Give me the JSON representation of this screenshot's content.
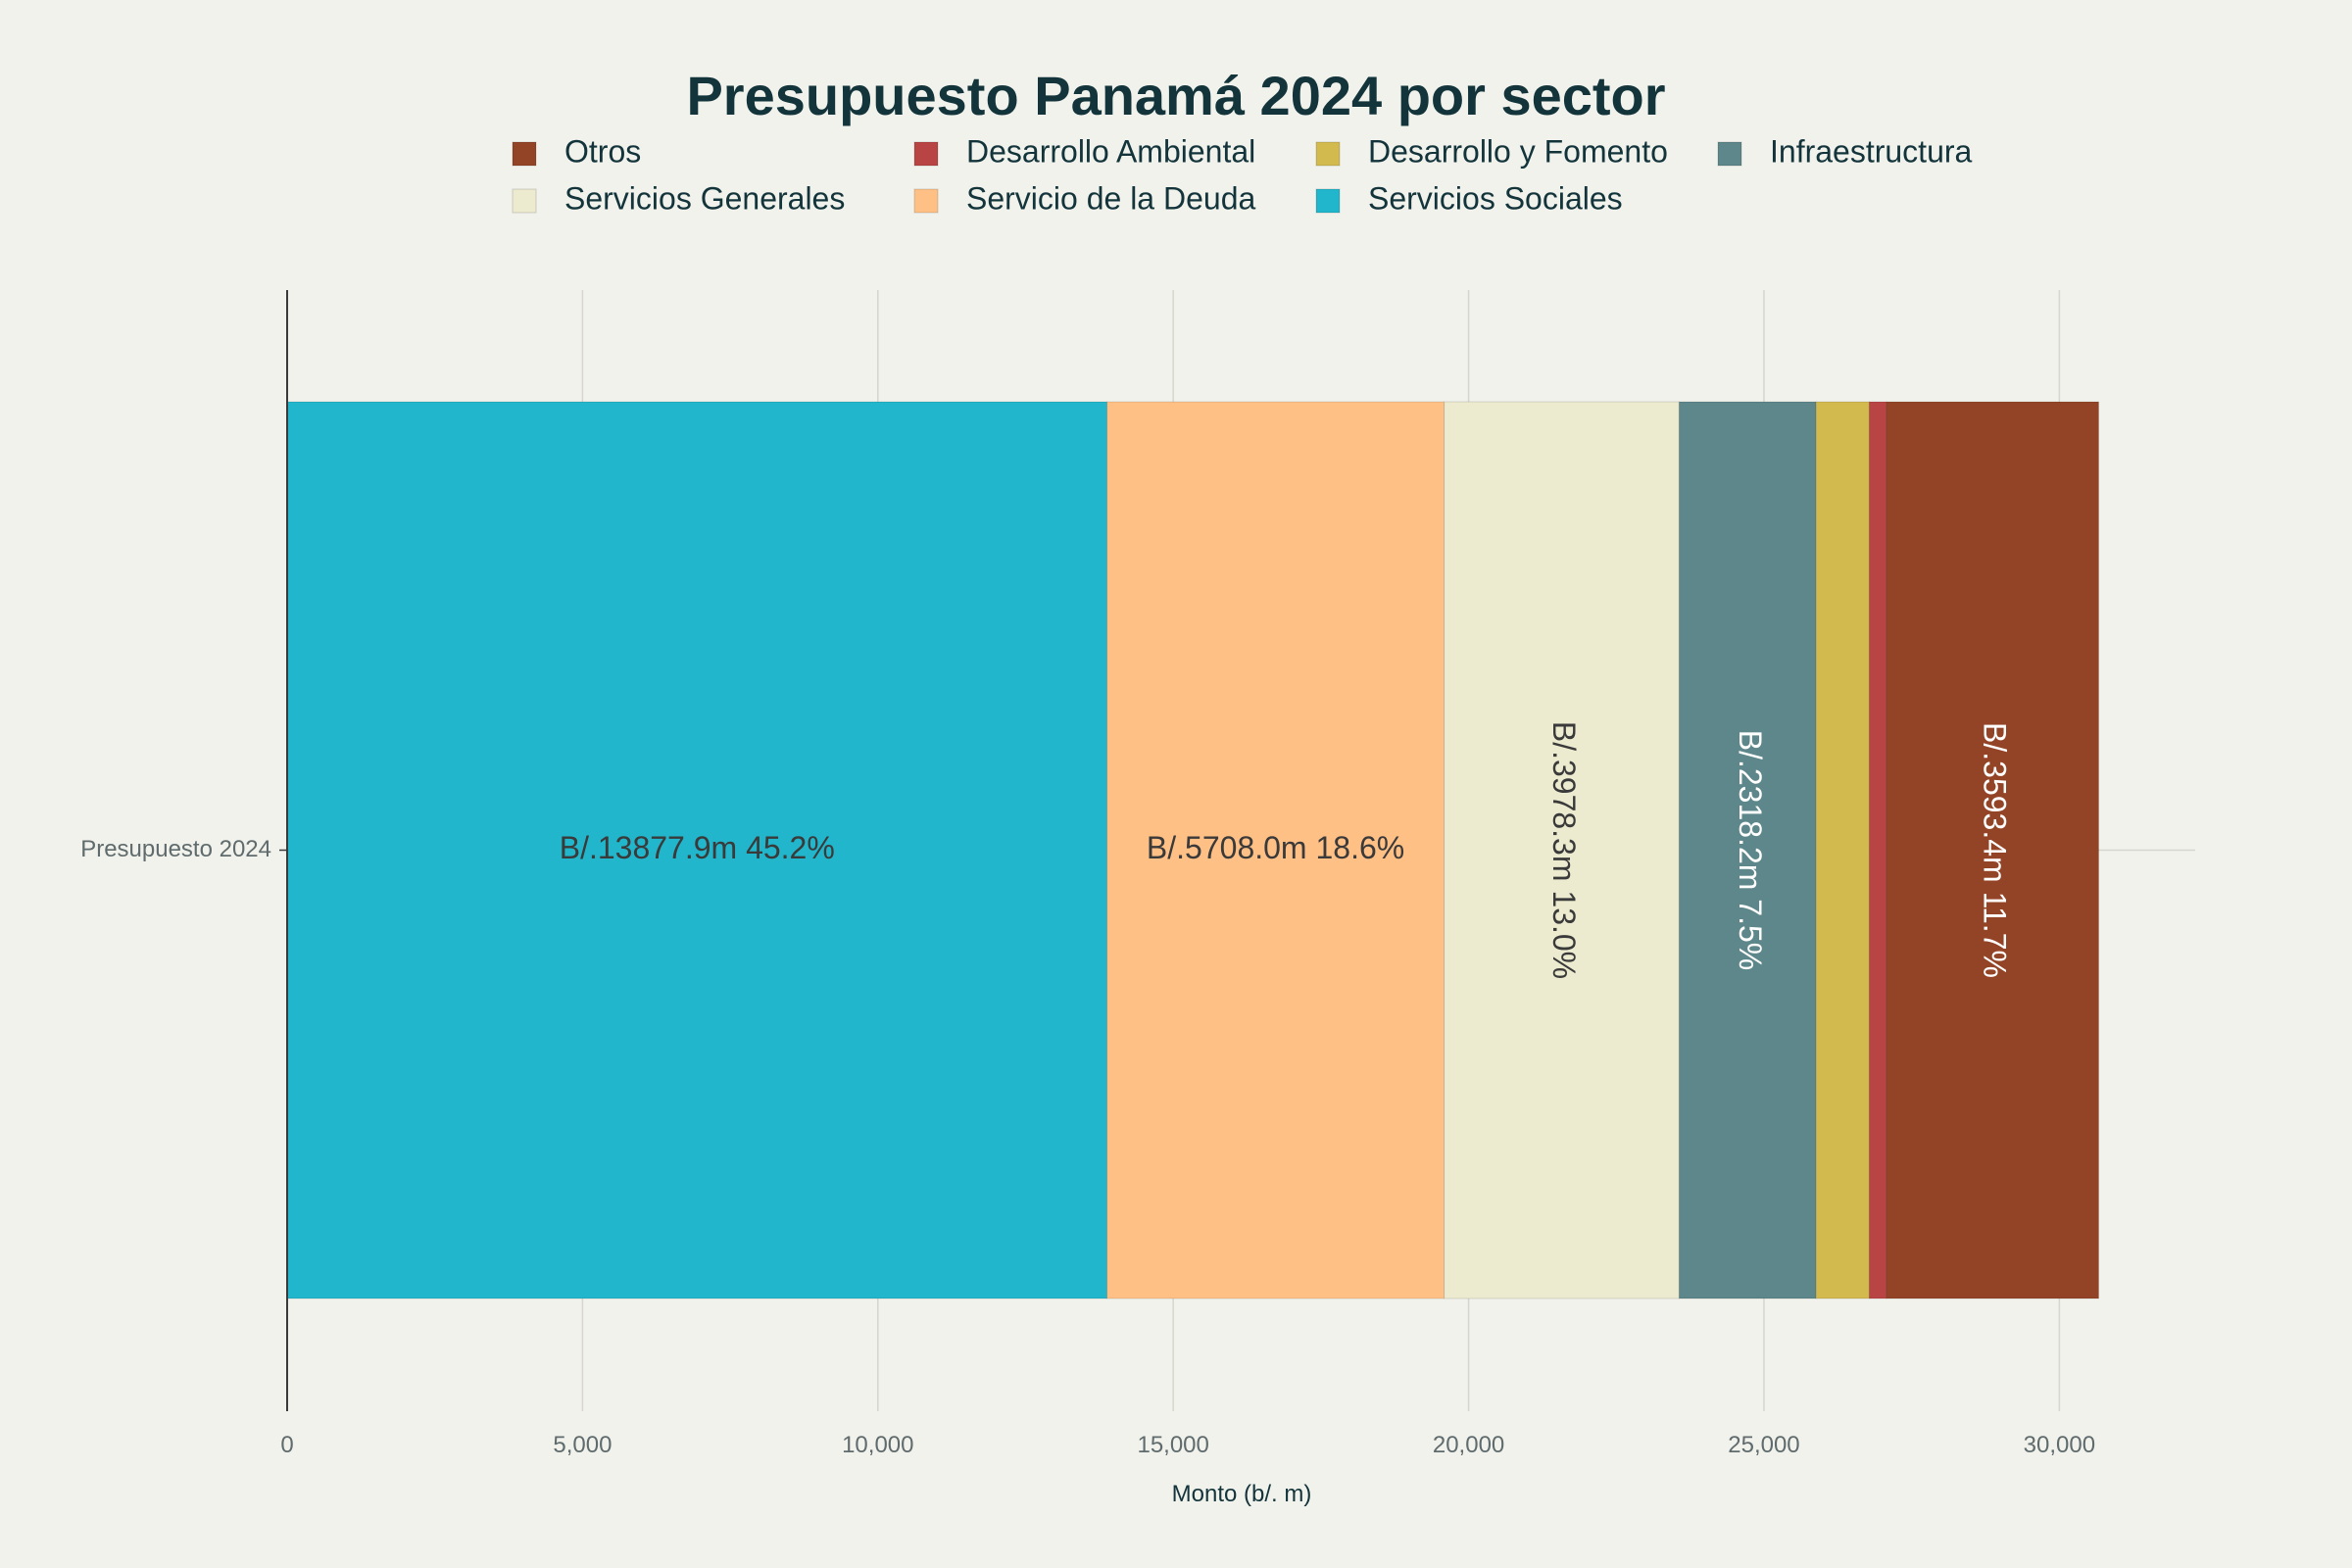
{
  "chart_data": {
    "type": "bar",
    "orientation": "horizontal",
    "stacked": true,
    "title": "Presupuesto Panamá 2024 por sector",
    "xlabel": "Monto (b/. m)",
    "ylabel": "",
    "xlim": [
      0,
      32300
    ],
    "xticks": [
      0,
      5000,
      10000,
      15000,
      20000,
      25000,
      30000
    ],
    "xtick_labels": [
      "0",
      "5,000",
      "10,000",
      "15,000",
      "20,000",
      "25,000",
      "30,000"
    ],
    "grid": true,
    "legend_position": "top",
    "categories": [
      "Presupuesto 2024"
    ],
    "series": [
      {
        "name": "Servicios Sociales",
        "values": [
          13877.9
        ],
        "color": "#21b6cb",
        "label": "B/.13877.9m 45.2%",
        "label_color": "#3a3a3a",
        "label_rotated": false
      },
      {
        "name": "Servicio de la Deuda",
        "values": [
          5708.0
        ],
        "color": "#ffc086",
        "label": "B/.5708.0m 18.6%",
        "label_color": "#3a3a3a",
        "label_rotated": false
      },
      {
        "name": "Servicios Generales",
        "values": [
          3978.3
        ],
        "color": "#eceacf",
        "label": "B/.3978.3m 13.0%",
        "label_color": "#3a3a3a",
        "label_rotated": true
      },
      {
        "name": "Infraestructura",
        "values": [
          2318.2
        ],
        "color": "#5d878b",
        "label": "B/.2318.2m 7.5%",
        "label_color": "#ffffff",
        "label_rotated": true
      },
      {
        "name": "Desarrollo y Fomento",
        "values": [
          900
        ],
        "color": "#d2ba4e",
        "label": "",
        "label_color": "#3a3a3a",
        "label_rotated": false
      },
      {
        "name": "Desarrollo Ambiental",
        "values": [
          290
        ],
        "color": "#b94444",
        "label": "",
        "label_color": "#ffffff",
        "label_rotated": false
      },
      {
        "name": "Otros",
        "values": [
          3593.4
        ],
        "color": "#944426",
        "label": "B/.3593.4m 11.7%",
        "label_color": "#ffffff",
        "label_rotated": true
      }
    ],
    "legend_order": [
      "Otros",
      "Desarrollo Ambiental",
      "Desarrollo y Fomento",
      "Infraestructura",
      "Servicios Generales",
      "Servicio de la Deuda",
      "Servicios Sociales"
    ]
  }
}
